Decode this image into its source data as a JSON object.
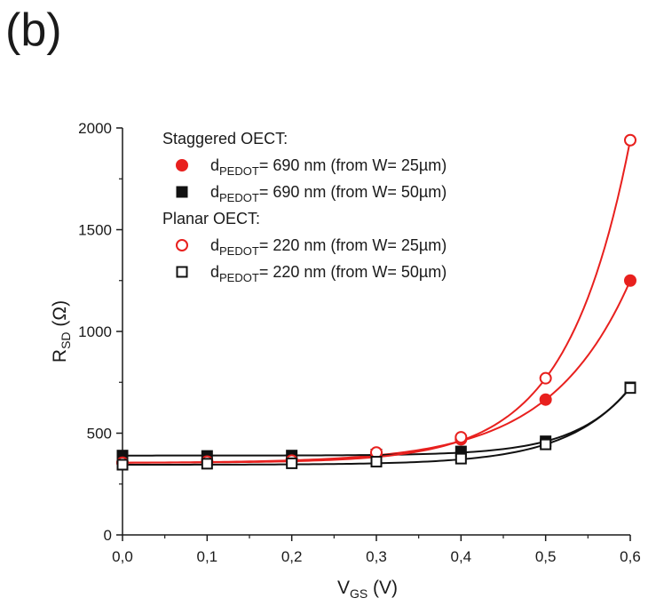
{
  "panel_label": "(b)",
  "chart_data": {
    "type": "scatter",
    "xlabel": {
      "main": "V",
      "sub": "GS",
      "unit": " (V)"
    },
    "ylabel": {
      "main": "R",
      "sub": "SD",
      "unit": " (Ω)"
    },
    "xlim": [
      0,
      0.6
    ],
    "ylim": [
      0,
      2000
    ],
    "xticks": [
      "0,0",
      "0,1",
      "0,2",
      "0,3",
      "0,4",
      "0,5",
      "0,6"
    ],
    "yticks": [
      "0",
      "500",
      "1000",
      "1500",
      "2000"
    ],
    "grid": false,
    "legend_position": "top-left",
    "legend_groups": [
      {
        "heading": "Staggered OECT:",
        "series": [
          0,
          1
        ]
      },
      {
        "heading": "Planar OECT:",
        "series": [
          2,
          3
        ]
      }
    ],
    "series": [
      {
        "name": "690 nm (from W= 25µm)",
        "name_prefix": "d",
        "name_sub": "PEDOT",
        "name_rest": "= 690 nm (from W= 25µm)",
        "color": "#e8201e",
        "marker": "circle",
        "filled": true,
        "x": [
          0.0,
          0.1,
          0.2,
          0.3,
          0.4,
          0.5,
          0.6
        ],
        "y": [
          355,
          360,
          370,
          400,
          470,
          665,
          1250
        ]
      },
      {
        "name": "690 nm (from W= 50µm)",
        "name_prefix": "d",
        "name_sub": "PEDOT",
        "name_rest": "= 690 nm (from W= 50µm)",
        "color": "#111111",
        "marker": "square",
        "filled": true,
        "x": [
          0.0,
          0.1,
          0.2,
          0.3,
          0.4,
          0.5,
          0.6
        ],
        "y": [
          390,
          388,
          390,
          395,
          410,
          460,
          725
        ]
      },
      {
        "name": "220 nm (from W= 25µm)",
        "name_prefix": "d",
        "name_sub": "PEDOT",
        "name_rest": "= 220 nm (from W= 25µm)",
        "color": "#e8201e",
        "marker": "circle",
        "filled": false,
        "x": [
          0.0,
          0.1,
          0.2,
          0.3,
          0.4,
          0.5,
          0.6
        ],
        "y": [
          355,
          360,
          365,
          405,
          480,
          770,
          1940
        ]
      },
      {
        "name": "220 nm (from W= 50µm)",
        "name_prefix": "d",
        "name_sub": "PEDOT",
        "name_rest": "= 220 nm (from W= 50µm)",
        "color": "#111111",
        "marker": "square",
        "filled": false,
        "x": [
          0.0,
          0.1,
          0.2,
          0.3,
          0.4,
          0.5,
          0.6
        ],
        "y": [
          345,
          350,
          352,
          360,
          375,
          445,
          722
        ]
      }
    ]
  }
}
